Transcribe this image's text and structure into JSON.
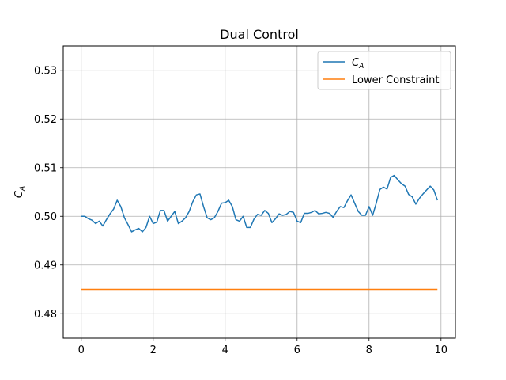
{
  "chart_data": {
    "type": "line",
    "title": "Dual Control",
    "xlabel": "",
    "ylabel_main": "C",
    "ylabel_sub": "A",
    "xlim": [
      -0.5,
      10.4
    ],
    "ylim": [
      0.475,
      0.535
    ],
    "xticks": [
      0,
      2,
      4,
      6,
      8,
      10
    ],
    "yticks": [
      0.48,
      0.49,
      0.5,
      0.51,
      0.52,
      0.53
    ],
    "xtick_labels": [
      "0",
      "2",
      "4",
      "6",
      "8",
      "10"
    ],
    "ytick_labels": [
      "0.48",
      "0.49",
      "0.50",
      "0.51",
      "0.52",
      "0.53"
    ],
    "grid": true,
    "legend_position": "top-right",
    "series": [
      {
        "name_main": "C",
        "name_sub": "A",
        "color": "#1f77b4",
        "x": [
          0.0,
          0.1,
          0.2,
          0.3,
          0.4,
          0.5,
          0.6,
          0.7,
          0.8,
          0.9,
          1.0,
          1.1,
          1.2,
          1.3,
          1.4,
          1.5,
          1.6,
          1.7,
          1.8,
          1.9,
          2.0,
          2.1,
          2.2,
          2.3,
          2.4,
          2.5,
          2.6,
          2.7,
          2.8,
          2.9,
          3.0,
          3.1,
          3.2,
          3.3,
          3.4,
          3.5,
          3.6,
          3.7,
          3.8,
          3.9,
          4.0,
          4.1,
          4.2,
          4.3,
          4.4,
          4.5,
          4.6,
          4.7,
          4.8,
          4.9,
          5.0,
          5.1,
          5.2,
          5.3,
          5.4,
          5.5,
          5.6,
          5.7,
          5.8,
          5.9,
          6.0,
          6.1,
          6.2,
          6.3,
          6.4,
          6.5,
          6.6,
          6.7,
          6.8,
          6.9,
          7.0,
          7.1,
          7.2,
          7.3,
          7.4,
          7.5,
          7.6,
          7.7,
          7.8,
          7.9,
          8.0,
          8.1,
          8.2,
          8.3,
          8.4,
          8.5,
          8.6,
          8.7,
          8.8,
          8.9,
          9.0,
          9.1,
          9.2,
          9.3,
          9.4,
          9.5,
          9.6,
          9.7,
          9.8,
          9.9
        ],
        "values": [
          0.5,
          0.5,
          0.4995,
          0.4992,
          0.4985,
          0.499,
          0.498,
          0.4993,
          0.5005,
          0.5015,
          0.5033,
          0.502,
          0.4997,
          0.4983,
          0.4968,
          0.4972,
          0.4975,
          0.4968,
          0.4977,
          0.5,
          0.4985,
          0.4988,
          0.5012,
          0.5012,
          0.499,
          0.5,
          0.501,
          0.4985,
          0.499,
          0.4997,
          0.501,
          0.503,
          0.5044,
          0.5046,
          0.502,
          0.4997,
          0.4993,
          0.4997,
          0.501,
          0.5027,
          0.5028,
          0.5033,
          0.502,
          0.4993,
          0.499,
          0.5,
          0.4977,
          0.4977,
          0.4994,
          0.5004,
          0.5002,
          0.5012,
          0.5006,
          0.4987,
          0.4995,
          0.5005,
          0.5002,
          0.5004,
          0.501,
          0.5008,
          0.499,
          0.4987,
          0.5006,
          0.5006,
          0.5008,
          0.5012,
          0.5005,
          0.5006,
          0.5008,
          0.5006,
          0.4998,
          0.501,
          0.502,
          0.5018,
          0.5032,
          0.5044,
          0.5027,
          0.501,
          0.5002,
          0.5002,
          0.502,
          0.5002,
          0.5027,
          0.5055,
          0.506,
          0.5056,
          0.508,
          0.5084,
          0.5075,
          0.5067,
          0.5062,
          0.5045,
          0.504,
          0.5025,
          0.5037,
          0.5046,
          0.5054,
          0.5062,
          0.5054,
          0.5033
        ]
      },
      {
        "name": "Lower Constraint",
        "color": "#ff7f0e",
        "x": [
          0.0,
          9.9
        ],
        "values": [
          0.485,
          0.485
        ]
      }
    ]
  }
}
